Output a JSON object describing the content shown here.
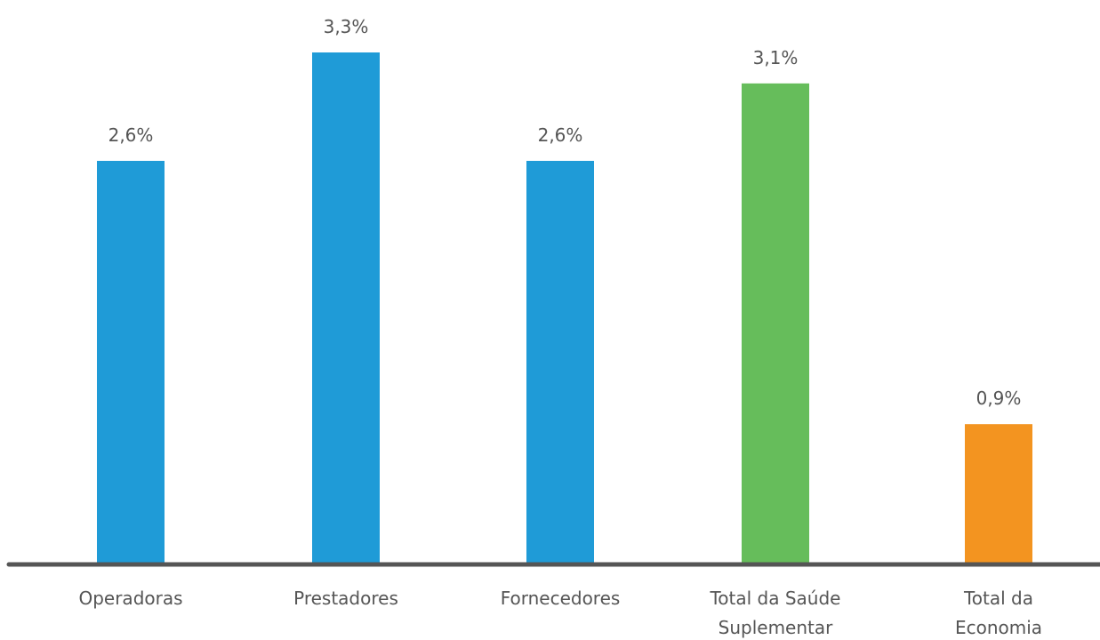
{
  "chart_data": {
    "type": "bar",
    "categories": [
      [
        "Operadoras"
      ],
      [
        "Prestadores"
      ],
      [
        "Fornecedores"
      ],
      [
        "Total da Saúde",
        "Suplementar"
      ],
      [
        "Total da",
        "Economia"
      ]
    ],
    "values": [
      2.6,
      3.3,
      2.6,
      3.1,
      0.9
    ],
    "value_labels": [
      "2,6%",
      "3,3%",
      "2,6%",
      "3,1%",
      "0,9%"
    ],
    "bar_colors": [
      "#1f9bd7",
      "#1f9bd7",
      "#1f9bd7",
      "#66bd5b",
      "#f39420"
    ],
    "axis_color": "#555555",
    "ylim": [
      0,
      3.3
    ],
    "grid": false,
    "legend": "none"
  }
}
